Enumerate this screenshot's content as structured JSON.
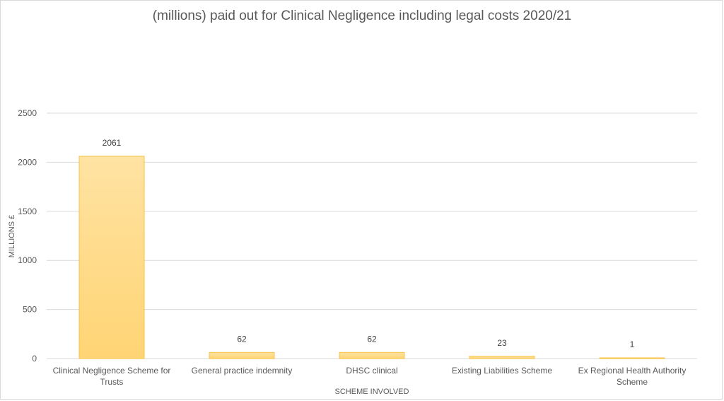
{
  "chart_data": {
    "type": "bar",
    "title": "(millions) paid out for Clinical Negligence including legal costs  2020/21",
    "xlabel": "SCHEME INVOLVED",
    "ylabel": "MILLIONS £",
    "categories": [
      [
        "Clinical Negligence Scheme for",
        "Trusts"
      ],
      [
        "General practice indemnity"
      ],
      [
        "DHSC clinical"
      ],
      [
        "Existing Liabilities Scheme"
      ],
      [
        "Ex Regional Health Authority",
        "Scheme"
      ]
    ],
    "values": [
      2061,
      62,
      62,
      23,
      1
    ],
    "data_labels": [
      "2061",
      "62",
      "62",
      "23",
      "1"
    ],
    "ylim": [
      0,
      2500
    ],
    "yticks": [
      0,
      500,
      1000,
      1500,
      2000,
      2500
    ],
    "grid": true,
    "legend": "none",
    "colors": {
      "bar_top": "#FFE3A3",
      "bar_bottom": "#FFD474",
      "bar_border": "#F5C342",
      "grid": "#d9d9d9",
      "text": "#595959"
    }
  }
}
